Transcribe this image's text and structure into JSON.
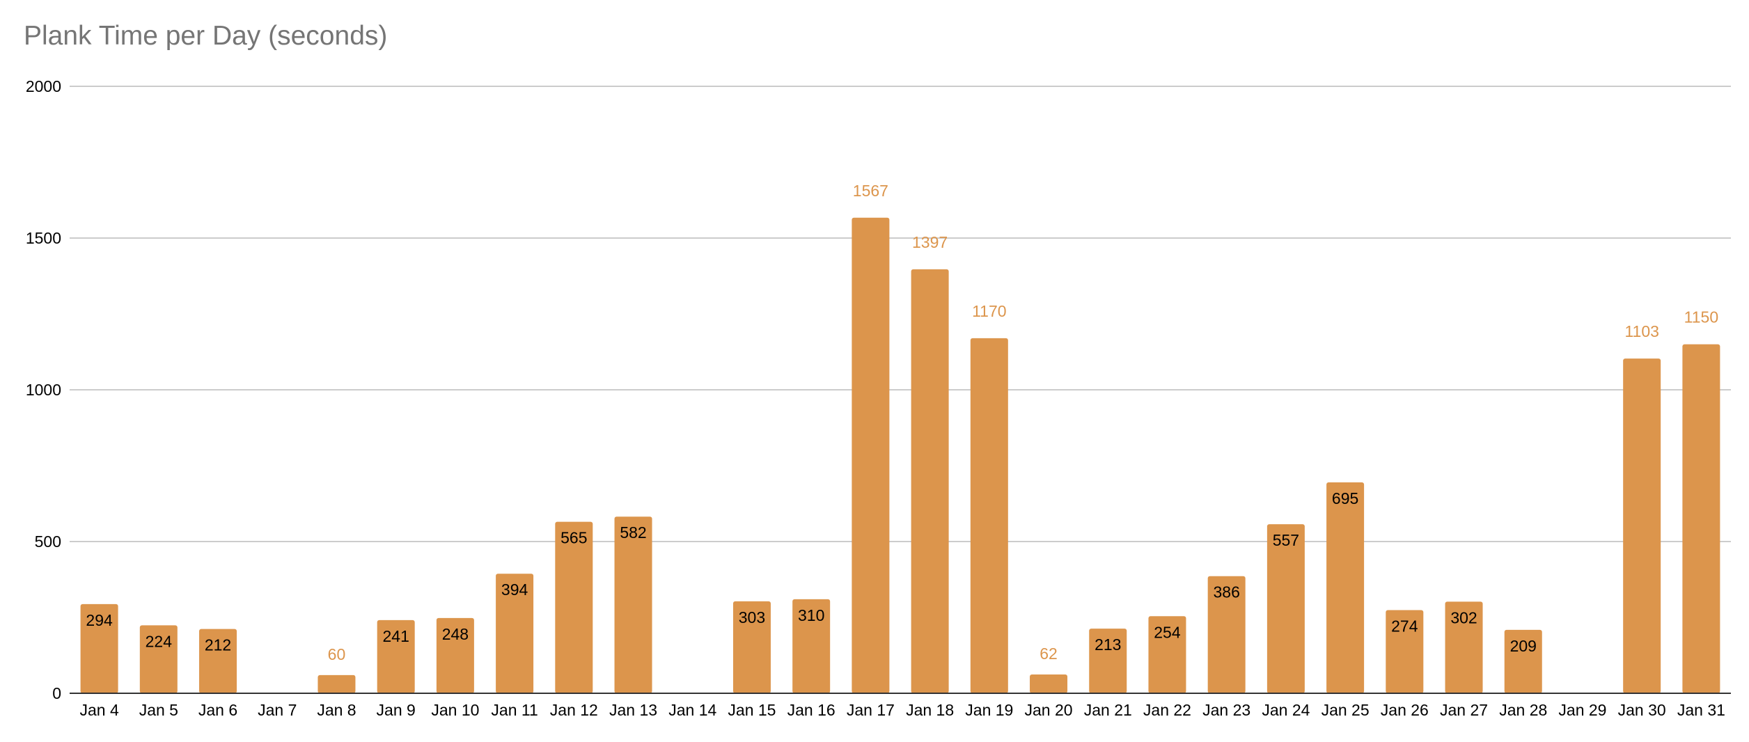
{
  "chart_data": {
    "type": "bar",
    "title": "Plank Time per Day (seconds)",
    "xlabel": "",
    "ylabel": "",
    "ylim": [
      0,
      2000
    ],
    "yticks": [
      0,
      500,
      1000,
      1500,
      2000
    ],
    "grid": true,
    "legend": "none",
    "bar_color": "#dc954c",
    "gridline_color": "#cccccc",
    "categories": [
      "Jan 4",
      "Jan 5",
      "Jan 6",
      "Jan 7",
      "Jan 8",
      "Jan 9",
      "Jan 10",
      "Jan 11",
      "Jan 12",
      "Jan 13",
      "Jan 14",
      "Jan 15",
      "Jan 16",
      "Jan 17",
      "Jan 18",
      "Jan 19",
      "Jan 20",
      "Jan 21",
      "Jan 22",
      "Jan 23",
      "Jan 24",
      "Jan 25",
      "Jan 26",
      "Jan 27",
      "Jan 28",
      "Jan 29",
      "Jan 30",
      "Jan 31"
    ],
    "values": [
      294,
      224,
      212,
      null,
      60,
      241,
      248,
      394,
      565,
      582,
      null,
      303,
      310,
      1567,
      1397,
      1170,
      62,
      213,
      254,
      386,
      557,
      695,
      274,
      302,
      209,
      null,
      1103,
      1150
    ]
  }
}
